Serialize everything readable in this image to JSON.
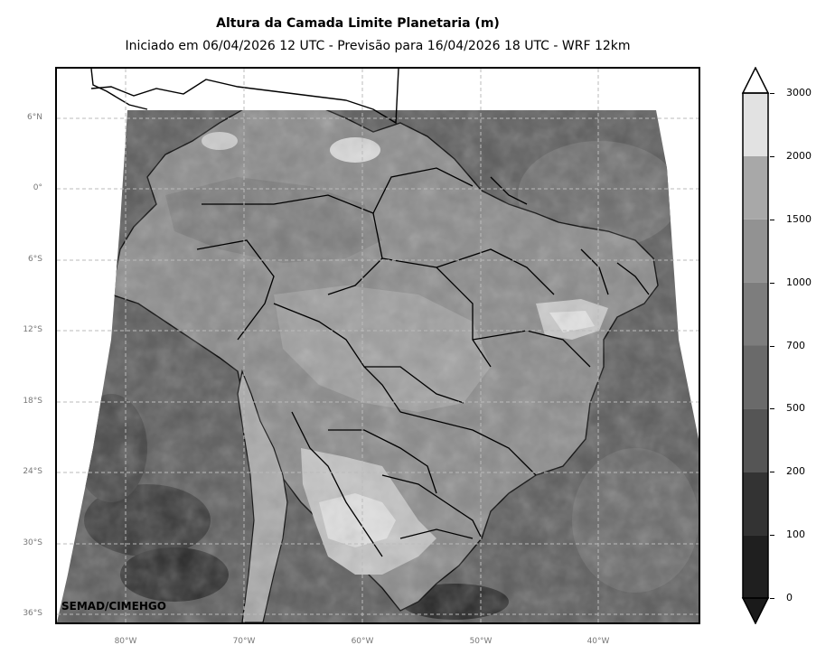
{
  "title": "Altura da Camada Limite Planetaria (m)",
  "subtitle": "Iniciado em 06/04/2026 12 UTC - Previsão para 16/04/2026 18 UTC - WRF 12km",
  "credit": "SEMAD/CIMEHGO",
  "lat_ticks": [
    "6°N",
    "0°",
    "6°S",
    "12°S",
    "18°S",
    "24°S",
    "30°S",
    "36°S"
  ],
  "lon_ticks": [
    "80°W",
    "70°W",
    "60°W",
    "50°W",
    "40°W"
  ],
  "colorbar": {
    "levels": [
      "0",
      "100",
      "200",
      "500",
      "700",
      "1000",
      "1500",
      "2000",
      "3000"
    ],
    "colors": [
      "#1f1f1f",
      "#333333",
      "#555555",
      "#6a6a6a",
      "#7d7d7d",
      "#929292",
      "#a8a8a8",
      "#e2e2e2"
    ],
    "extend": "both"
  },
  "colors": {
    "ocean": "#5c5c5c",
    "land_low": "#8a8a8a",
    "land_mid": "#9e9e9e",
    "land_high": "#c4c4c4",
    "land_peak": "#e0e0e0",
    "borders": "#000000",
    "grid": "#bbbbbb"
  }
}
